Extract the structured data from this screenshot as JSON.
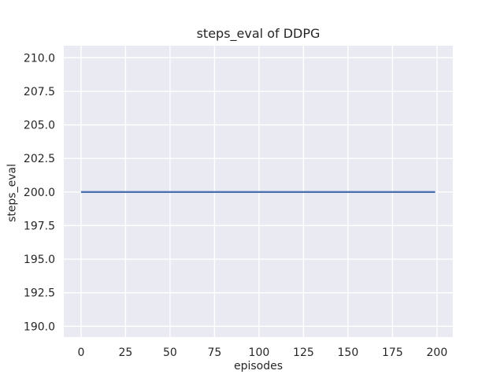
{
  "chart_data": {
    "type": "line",
    "title": "steps_eval of DDPG",
    "xlabel": "episodes",
    "ylabel": "steps_eval",
    "x_ticks": [
      0,
      25,
      50,
      75,
      100,
      125,
      150,
      175,
      200
    ],
    "x_tick_labels": [
      "0",
      "25",
      "50",
      "75",
      "100",
      "125",
      "150",
      "175",
      "200"
    ],
    "y_ticks": [
      190.0,
      192.5,
      195.0,
      197.5,
      200.0,
      202.5,
      205.0,
      207.5,
      210.0
    ],
    "y_tick_labels": [
      "190.0",
      "192.5",
      "195.0",
      "197.5",
      "200.0",
      "202.5",
      "205.0",
      "207.5",
      "210.0"
    ],
    "xlim": [
      -9.7,
      208.9
    ],
    "ylim": [
      189.2,
      210.9
    ],
    "grid": true,
    "legend_position": "none",
    "series": [
      {
        "name": "steps_eval",
        "color": "#4C72B0",
        "x": [
          0,
          199
        ],
        "y": [
          200,
          200
        ]
      }
    ],
    "colors": {
      "figure_background": "#FFFFFF",
      "plot_background": "#EAEAF2",
      "grid": "#FFFFFF",
      "text": "#262626"
    },
    "line_width": 2.4
  }
}
